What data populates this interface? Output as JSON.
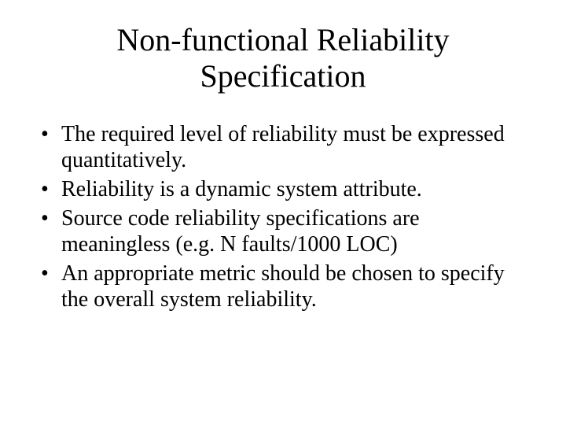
{
  "slide": {
    "title": "Non-functional Reliability Specification",
    "title_fontsize": 40,
    "title_align": "center",
    "background_color": "#ffffff",
    "text_color": "#000000",
    "font_family": "Times New Roman",
    "bullets": [
      "The required level of reliability must be expressed quantitatively.",
      "Reliability is a dynamic system attribute.",
      "Source code reliability specifications are meaningless (e.g. N faults/1000 LOC)",
      "An appropriate metric should be chosen to specify the overall system reliability."
    ],
    "bullet_fontsize": 28,
    "bullet_marker": "•"
  }
}
